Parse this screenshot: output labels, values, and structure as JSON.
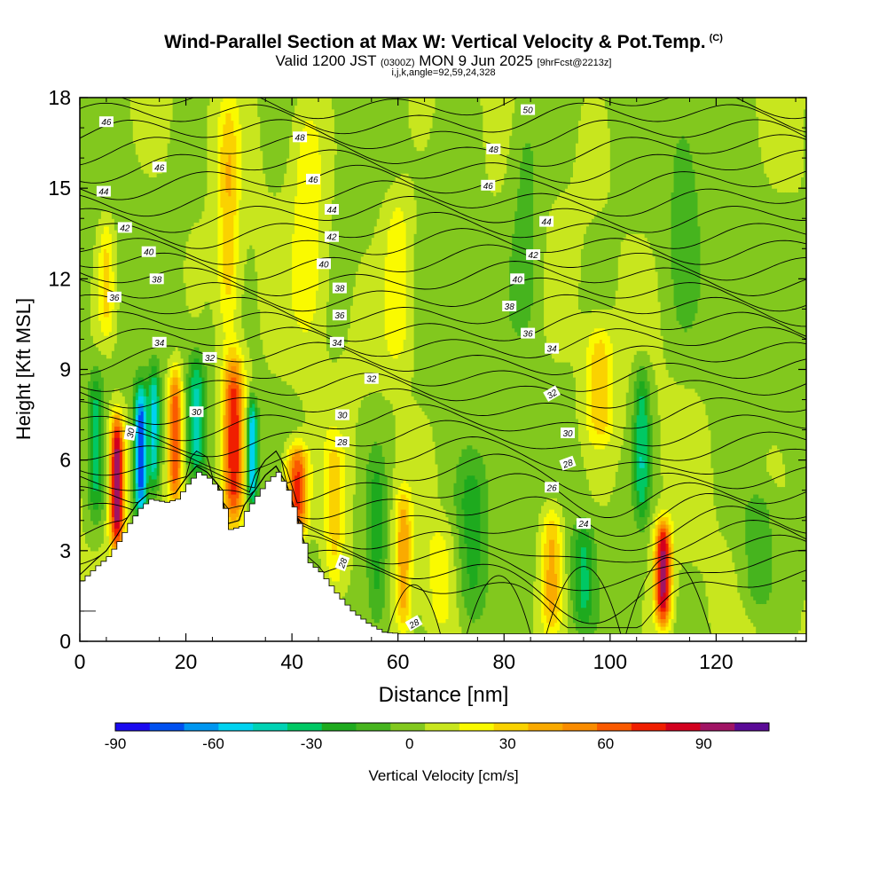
{
  "title": {
    "line1": "Wind-Parallel Section at Max W: Vertical Velocity & Pot.Temp.",
    "line1_tag": "(C)",
    "line2_a": "Valid 1200 JST",
    "line2_b": "(0300Z)",
    "line2_c": "MON 9 Jun 2025",
    "line2_d": "[9hrFcst@2213z]",
    "line3": "i,j,k,angle=92,59,24,328"
  },
  "chart_data": {
    "type": "heatmap",
    "xlabel": "Distance [nm]",
    "ylabel": "Height [Kft MSL]",
    "xlim": [
      0,
      137
    ],
    "ylim": [
      0,
      18
    ],
    "xticks": [
      0,
      20,
      40,
      60,
      80,
      100,
      120
    ],
    "yticks": [
      0,
      3,
      6,
      9,
      12,
      15,
      18
    ],
    "colorbar": {
      "label": "Vertical Velocity [cm/s]",
      "ticks": [
        -90,
        -60,
        -30,
        0,
        30,
        60,
        90
      ],
      "min": -90,
      "max": 110,
      "colors": [
        "#1a0af0",
        "#0050f0",
        "#0096f0",
        "#00d2f0",
        "#00d2b4",
        "#00c864",
        "#1eaa1e",
        "#46b41e",
        "#82c81e",
        "#c8e61e",
        "#fafa00",
        "#fad200",
        "#faaa00",
        "#fa8c00",
        "#fa5a00",
        "#f01e00",
        "#d2001e",
        "#a01464",
        "#5a0a96"
      ]
    },
    "terrain": [
      {
        "x": 0,
        "h": 2.0
      },
      {
        "x": 3,
        "h": 2.5
      },
      {
        "x": 5,
        "h": 2.8
      },
      {
        "x": 7,
        "h": 3.3
      },
      {
        "x": 9,
        "h": 3.9
      },
      {
        "x": 11,
        "h": 4.4
      },
      {
        "x": 13,
        "h": 4.7
      },
      {
        "x": 16,
        "h": 4.6
      },
      {
        "x": 18,
        "h": 4.7
      },
      {
        "x": 20,
        "h": 5.2
      },
      {
        "x": 22,
        "h": 5.6
      },
      {
        "x": 24,
        "h": 5.4
      },
      {
        "x": 26,
        "h": 5.0
      },
      {
        "x": 27,
        "h": 4.4
      },
      {
        "x": 28,
        "h": 3.7
      },
      {
        "x": 30,
        "h": 3.8
      },
      {
        "x": 31,
        "h": 4.3
      },
      {
        "x": 33,
        "h": 4.8
      },
      {
        "x": 35,
        "h": 5.3
      },
      {
        "x": 37,
        "h": 5.6
      },
      {
        "x": 39,
        "h": 5.0
      },
      {
        "x": 41,
        "h": 3.9
      },
      {
        "x": 43,
        "h": 2.6
      },
      {
        "x": 45,
        "h": 2.3
      },
      {
        "x": 48,
        "h": 1.6
      },
      {
        "x": 51,
        "h": 1.0
      },
      {
        "x": 54,
        "h": 0.6
      },
      {
        "x": 57,
        "h": 0.3
      },
      {
        "x": 60,
        "h": 0.25
      },
      {
        "x": 137,
        "h": 0.25
      }
    ],
    "updrafts": [
      {
        "x": 7,
        "h0": 3.0,
        "h1": 7.5,
        "w": 1.3,
        "amp": 95
      },
      {
        "x": 11.5,
        "h0": 4.0,
        "h1": 8.5,
        "w": 1.2,
        "amp": -85
      },
      {
        "x": 14,
        "h0": 5.0,
        "h1": 9.0,
        "w": 1.0,
        "amp": -55
      },
      {
        "x": 18,
        "h0": 4.5,
        "h1": 9.0,
        "w": 1.3,
        "amp": 70
      },
      {
        "x": 22,
        "h0": 5.5,
        "h1": 9.5,
        "w": 1.5,
        "amp": -40
      },
      {
        "x": 29,
        "h0": 3.8,
        "h1": 9.5,
        "w": 2.0,
        "amp": 75
      },
      {
        "x": 32.5,
        "h0": 4.5,
        "h1": 8.0,
        "w": 1.0,
        "amp": -65
      },
      {
        "x": 41,
        "h0": 3.5,
        "h1": 6.5,
        "w": 2.0,
        "amp": 70
      },
      {
        "x": 48,
        "h0": 1.5,
        "h1": 7.0,
        "w": 2.0,
        "amp": 25
      },
      {
        "x": 61,
        "h0": 0.3,
        "h1": 5.0,
        "w": 1.5,
        "amp": 40
      },
      {
        "x": 56,
        "h0": 0.3,
        "h1": 6.5,
        "w": 2.0,
        "amp": -25
      },
      {
        "x": 68,
        "h0": 0.3,
        "h1": 4.0,
        "w": 3.0,
        "amp": 15
      },
      {
        "x": 74,
        "h0": 0.3,
        "h1": 6.0,
        "w": 3.0,
        "amp": -25
      },
      {
        "x": 89,
        "h0": 0.3,
        "h1": 4.5,
        "w": 2.0,
        "amp": 40
      },
      {
        "x": 95,
        "h0": 0.5,
        "h1": 4.0,
        "w": 2.0,
        "amp": -30
      },
      {
        "x": 110,
        "h0": 0.5,
        "h1": 4.0,
        "w": 1.5,
        "amp": 90
      },
      {
        "x": 106,
        "h0": 4.0,
        "h1": 9.0,
        "w": 1.5,
        "amp": -40
      },
      {
        "x": 98,
        "h0": 6.5,
        "h1": 10.5,
        "w": 2.5,
        "amp": 30
      },
      {
        "x": 3,
        "h0": 4.0,
        "h1": 9.0,
        "w": 1.5,
        "amp": -35
      },
      {
        "x": 5,
        "h0": 10.0,
        "h1": 14.0,
        "w": 1.5,
        "amp": 25
      },
      {
        "x": 28,
        "h0": 10.0,
        "h1": 18.0,
        "w": 2.0,
        "amp": 30
      },
      {
        "x": 43,
        "h0": 10.0,
        "h1": 18.0,
        "w": 3.0,
        "amp": 20
      },
      {
        "x": 60,
        "h0": 9.0,
        "h1": 15.0,
        "w": 3.0,
        "amp": 22
      },
      {
        "x": 84,
        "h0": 10.0,
        "h1": 18.0,
        "w": 3.0,
        "amp": -15
      },
      {
        "x": 114,
        "h0": 10.0,
        "h1": 18.0,
        "w": 3.0,
        "amp": -12
      },
      {
        "x": 128,
        "h0": 1.0,
        "h1": 5.0,
        "w": 3.0,
        "amp": -20
      }
    ],
    "isentropes": {
      "labels": [
        {
          "x": 9.5,
          "y": 6.9,
          "text": "30",
          "angle": 80
        },
        {
          "x": 5,
          "y": 17.2,
          "text": "46"
        },
        {
          "x": 15,
          "y": 15.7,
          "text": "46"
        },
        {
          "x": 4.5,
          "y": 14.9,
          "text": "44"
        },
        {
          "x": 8.5,
          "y": 13.7,
          "text": "42"
        },
        {
          "x": 13,
          "y": 12.9,
          "text": "40"
        },
        {
          "x": 14.5,
          "y": 12.0,
          "text": "38"
        },
        {
          "x": 6.5,
          "y": 11.4,
          "text": "36"
        },
        {
          "x": 15,
          "y": 9.9,
          "text": "34"
        },
        {
          "x": 24.5,
          "y": 9.4,
          "text": "32"
        },
        {
          "x": 22,
          "y": 7.6,
          "text": "30"
        },
        {
          "x": 41.5,
          "y": 16.7,
          "text": "48"
        },
        {
          "x": 44,
          "y": 15.3,
          "text": "46"
        },
        {
          "x": 47.5,
          "y": 14.3,
          "text": "44"
        },
        {
          "x": 47.5,
          "y": 13.4,
          "text": "42"
        },
        {
          "x": 46,
          "y": 12.5,
          "text": "40"
        },
        {
          "x": 49,
          "y": 11.7,
          "text": "38"
        },
        {
          "x": 49,
          "y": 10.8,
          "text": "36"
        },
        {
          "x": 48.5,
          "y": 9.9,
          "text": "34"
        },
        {
          "x": 55,
          "y": 8.7,
          "text": "32"
        },
        {
          "x": 49.5,
          "y": 7.5,
          "text": "30"
        },
        {
          "x": 49.5,
          "y": 6.6,
          "text": "28"
        },
        {
          "x": 49.5,
          "y": 2.6,
          "text": "28",
          "angle": 70
        },
        {
          "x": 63,
          "y": 0.6,
          "text": "28",
          "angle": 30
        },
        {
          "x": 84.5,
          "y": 17.6,
          "text": "50"
        },
        {
          "x": 78,
          "y": 16.3,
          "text": "48"
        },
        {
          "x": 77,
          "y": 15.1,
          "text": "46"
        },
        {
          "x": 88,
          "y": 13.9,
          "text": "44"
        },
        {
          "x": 85.5,
          "y": 12.8,
          "text": "42"
        },
        {
          "x": 82.5,
          "y": 12.0,
          "text": "40"
        },
        {
          "x": 81,
          "y": 11.1,
          "text": "38"
        },
        {
          "x": 84.5,
          "y": 10.2,
          "text": "36"
        },
        {
          "x": 89,
          "y": 9.7,
          "text": "34"
        },
        {
          "x": 89,
          "y": 8.2,
          "text": "32",
          "angle": 30
        },
        {
          "x": 92,
          "y": 6.9,
          "text": "30"
        },
        {
          "x": 92,
          "y": 5.9,
          "text": "28",
          "angle": 20
        },
        {
          "x": 89,
          "y": 5.1,
          "text": "26"
        },
        {
          "x": 95,
          "y": 3.9,
          "text": "24"
        }
      ]
    }
  }
}
